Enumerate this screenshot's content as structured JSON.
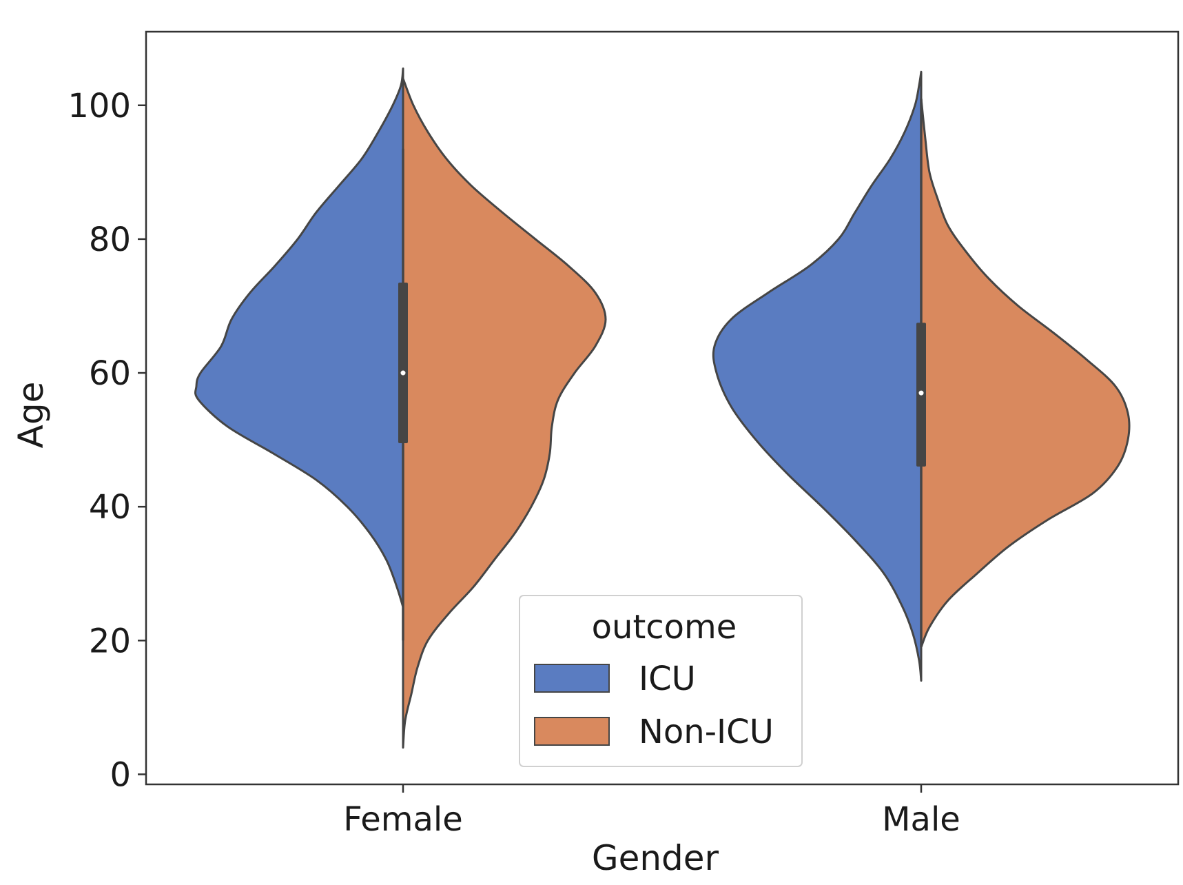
{
  "chart_data": {
    "type": "violin",
    "split": true,
    "title": "",
    "xlabel": "Gender",
    "ylabel": "Age",
    "categories": [
      "Female",
      "Male"
    ],
    "ylim": [
      -1.5,
      111
    ],
    "yticks": [
      0,
      20,
      40,
      60,
      80,
      100
    ],
    "grid": false,
    "legend": {
      "title": "outcome",
      "position": "lower-center",
      "entries": [
        {
          "label": "ICU",
          "color": "#5a7cc1"
        },
        {
          "label": "Non-ICU",
          "color": "#d9895e"
        }
      ]
    },
    "series": [
      {
        "name": "ICU",
        "color": "#5a7cc1",
        "violins": [
          {
            "category": "Female",
            "y_min": 25,
            "y_max": 105.5,
            "density": [
              [
                25,
                0.0
              ],
              [
                28,
                0.03
              ],
              [
                32,
                0.08
              ],
              [
                36,
                0.16
              ],
              [
                40,
                0.27
              ],
              [
                44,
                0.42
              ],
              [
                48,
                0.63
              ],
              [
                52,
                0.85
              ],
              [
                56,
                0.99
              ],
              [
                58,
                1.0
              ],
              [
                60,
                0.98
              ],
              [
                64,
                0.88
              ],
              [
                68,
                0.83
              ],
              [
                72,
                0.74
              ],
              [
                76,
                0.62
              ],
              [
                80,
                0.51
              ],
              [
                84,
                0.42
              ],
              [
                88,
                0.31
              ],
              [
                92,
                0.2
              ],
              [
                96,
                0.12
              ],
              [
                100,
                0.05
              ],
              [
                103,
                0.01
              ],
              [
                105.5,
                0.0
              ]
            ]
          },
          {
            "category": "Male",
            "y_min": 14,
            "y_max": 105,
            "density": [
              [
                14,
                0.0
              ],
              [
                17,
                0.01
              ],
              [
                21,
                0.04
              ],
              [
                25,
                0.09
              ],
              [
                30,
                0.18
              ],
              [
                35,
                0.32
              ],
              [
                40,
                0.48
              ],
              [
                45,
                0.65
              ],
              [
                50,
                0.8
              ],
              [
                55,
                0.92
              ],
              [
                60,
                0.99
              ],
              [
                64,
                1.0
              ],
              [
                68,
                0.92
              ],
              [
                72,
                0.74
              ],
              [
                76,
                0.54
              ],
              [
                80,
                0.4
              ],
              [
                84,
                0.32
              ],
              [
                88,
                0.24
              ],
              [
                92,
                0.15
              ],
              [
                96,
                0.08
              ],
              [
                100,
                0.03
              ],
              [
                103,
                0.01
              ],
              [
                105,
                0.0
              ]
            ]
          }
        ]
      },
      {
        "name": "Non-ICU",
        "color": "#d9895e",
        "violins": [
          {
            "category": "Female",
            "y_min": 4,
            "y_max": 104,
            "density": [
              [
                4,
                0.0
              ],
              [
                8,
                0.01
              ],
              [
                12,
                0.04
              ],
              [
                16,
                0.07
              ],
              [
                20,
                0.12
              ],
              [
                24,
                0.22
              ],
              [
                28,
                0.34
              ],
              [
                32,
                0.44
              ],
              [
                36,
                0.54
              ],
              [
                40,
                0.62
              ],
              [
                44,
                0.68
              ],
              [
                48,
                0.71
              ],
              [
                52,
                0.72
              ],
              [
                56,
                0.75
              ],
              [
                60,
                0.83
              ],
              [
                64,
                0.93
              ],
              [
                68,
                0.98
              ],
              [
                72,
                0.93
              ],
              [
                76,
                0.8
              ],
              [
                80,
                0.64
              ],
              [
                84,
                0.48
              ],
              [
                88,
                0.33
              ],
              [
                92,
                0.21
              ],
              [
                96,
                0.12
              ],
              [
                100,
                0.05
              ],
              [
                104,
                0.0
              ]
            ]
          },
          {
            "category": "Male",
            "y_min": 19,
            "y_max": 101,
            "density": [
              [
                19,
                0.0
              ],
              [
                22,
                0.04
              ],
              [
                26,
                0.13
              ],
              [
                30,
                0.27
              ],
              [
                34,
                0.42
              ],
              [
                38,
                0.61
              ],
              [
                42,
                0.83
              ],
              [
                46,
                0.95
              ],
              [
                50,
                1.0
              ],
              [
                54,
                1.0
              ],
              [
                58,
                0.94
              ],
              [
                62,
                0.8
              ],
              [
                66,
                0.64
              ],
              [
                70,
                0.47
              ],
              [
                74,
                0.33
              ],
              [
                78,
                0.22
              ],
              [
                82,
                0.13
              ],
              [
                86,
                0.08
              ],
              [
                90,
                0.04
              ],
              [
                95,
                0.02
              ],
              [
                101,
                0.0
              ]
            ]
          }
        ]
      }
    ],
    "boxes": [
      {
        "category": "Female",
        "median": 60,
        "q1": 49.5,
        "q3": 73.5,
        "whisker_low": 20,
        "whisker_high": 93.5
      },
      {
        "category": "Male",
        "median": 57,
        "q1": 46,
        "q3": 67.5,
        "whisker_low": 19,
        "whisker_high": 101
      }
    ]
  }
}
